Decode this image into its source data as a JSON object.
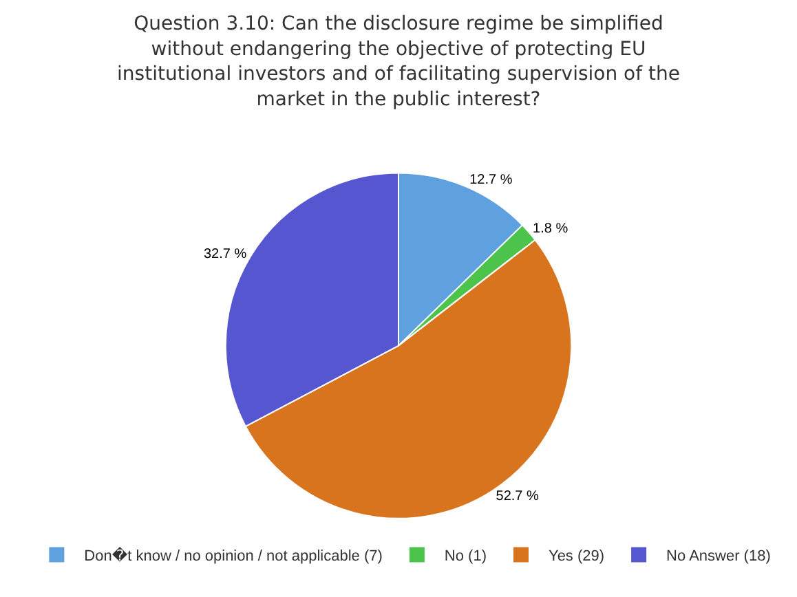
{
  "chart_data": {
    "type": "pie",
    "title": "Question 3.10: Can the disclosure regime be simplified\nwithout endangering the objective of protecting EU\ninstitutional investors and of facilitating supervision of the\nmarket in the public interest?",
    "categories": [
      "Don�t know / no opinion / not applicable (7)",
      "No (1)",
      "Yes (29)",
      "No Answer (18)"
    ],
    "values": [
      12.7,
      1.8,
      52.7,
      32.7
    ],
    "value_labels": [
      "12.7 %",
      "1.8 %",
      "52.7 %",
      "32.7 %"
    ],
    "colors": [
      "#5fa0de",
      "#4cc44c",
      "#d9741e",
      "#5656d0"
    ],
    "legend": "bottom"
  }
}
